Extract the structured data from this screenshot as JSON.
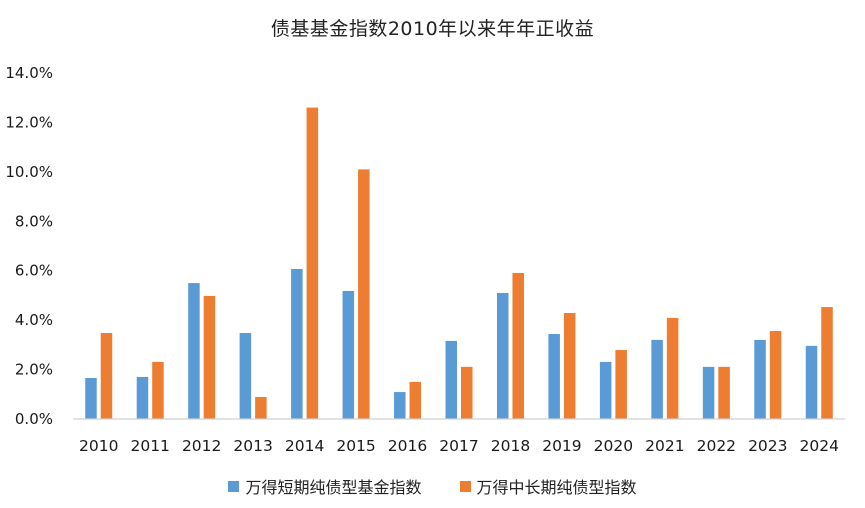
{
  "chart_data": {
    "type": "bar",
    "title": "债基基金指数2010年以来年年正收益",
    "xlabel": "",
    "ylabel": "",
    "categories": [
      "2010",
      "2011",
      "2012",
      "2013",
      "2014",
      "2015",
      "2016",
      "2017",
      "2018",
      "2019",
      "2020",
      "2021",
      "2022",
      "2023",
      "2024"
    ],
    "series": [
      {
        "name": "万得短期纯债型基金指数",
        "color": "#5B9BD5",
        "values": [
          1.66,
          1.7,
          5.5,
          3.48,
          6.07,
          5.18,
          1.09,
          3.16,
          5.1,
          3.44,
          2.31,
          3.2,
          2.11,
          3.2,
          2.96
        ]
      },
      {
        "name": "万得中长期纯债型指数",
        "color": "#ED7D31",
        "values": [
          3.48,
          2.31,
          4.98,
          0.89,
          12.6,
          10.1,
          1.5,
          2.11,
          5.91,
          4.29,
          2.79,
          4.09,
          2.11,
          3.56,
          4.53
        ]
      }
    ],
    "ylim": [
      0,
      14
    ],
    "yticks": [
      "0.0%",
      "2.0%",
      "4.0%",
      "6.0%",
      "8.0%",
      "10.0%",
      "12.0%",
      "14.0%"
    ],
    "ytick_step": 2,
    "grid": false,
    "legend_position": "bottom",
    "unit": "%"
  }
}
